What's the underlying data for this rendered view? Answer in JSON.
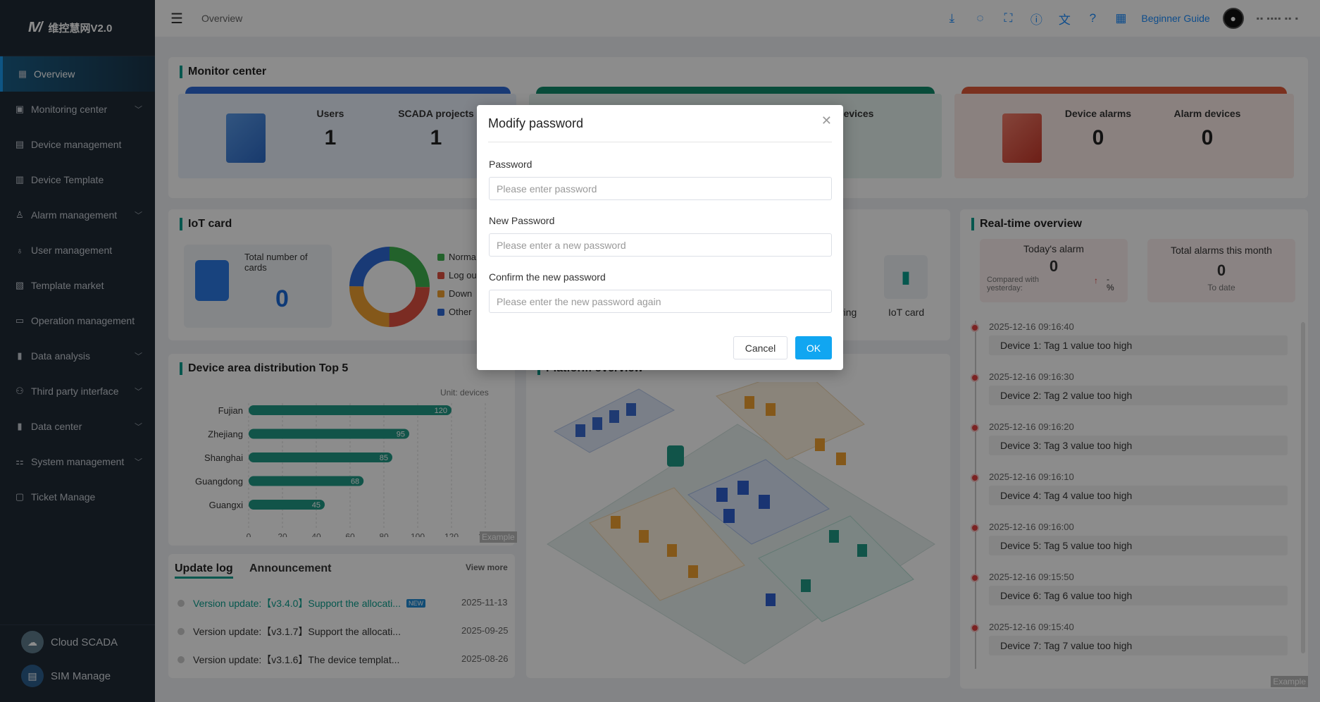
{
  "app": {
    "title": "维控慧网V2.0"
  },
  "sidebar": {
    "items": [
      {
        "label": "Overview",
        "active": true
      },
      {
        "label": "Monitoring center",
        "expandable": true
      },
      {
        "label": "Device management"
      },
      {
        "label": "Device Template"
      },
      {
        "label": "Alarm management",
        "expandable": true
      },
      {
        "label": "User management"
      },
      {
        "label": "Template market"
      },
      {
        "label": "Operation management"
      },
      {
        "label": "Data analysis",
        "expandable": true
      },
      {
        "label": "Third party interface",
        "expandable": true
      },
      {
        "label": "Data center",
        "expandable": true
      },
      {
        "label": "System management",
        "expandable": true
      },
      {
        "label": "Ticket Manage"
      }
    ],
    "bottom": [
      {
        "label": "Cloud SCADA"
      },
      {
        "label": "SIM Manage"
      }
    ]
  },
  "topbar": {
    "breadcrumb": "Overview",
    "guide": "Beginner Guide",
    "user": "▪▪ ▪▪▪▪ ▪▪ ▪"
  },
  "monitor": {
    "title": "Monitor center",
    "users_label": "Users",
    "users_value": "1",
    "scada_label": "SCADA projects",
    "scada_value": "1",
    "devices_label": "evices",
    "devices_value": "",
    "alarms_label": "Device alarms",
    "alarms_value": "0",
    "alarm_devices_label": "Alarm devices",
    "alarm_devices_value": "0"
  },
  "iot": {
    "title": "IoT card",
    "total_label": "Total number of cards",
    "total_value": "0",
    "legend": [
      "Norma",
      "Log ou",
      "Down",
      "Other"
    ],
    "tile1": "ring",
    "tile2": "IoT card"
  },
  "area": {
    "title": "Device area distribution Top 5",
    "unit": "Unit: devices",
    "watermark": "Example"
  },
  "chart_data": {
    "type": "bar",
    "orientation": "horizontal",
    "categories": [
      "Fujian",
      "Zhejiang",
      "Shanghai",
      "Guangdong",
      "Guangxi"
    ],
    "values": [
      120,
      95,
      85,
      68,
      45
    ],
    "xlim": [
      0,
      140
    ],
    "xticks": [
      0,
      20,
      40,
      60,
      80,
      100,
      120,
      140
    ],
    "color": "#1f9a85"
  },
  "platform": {
    "title": "Platform overview"
  },
  "log": {
    "tab1": "Update log",
    "tab2": "Announcement",
    "more": "View more",
    "new_badge": "NEW",
    "rows": [
      {
        "text": "Version update:【v3.4.0】Support the allocati...",
        "date": "2025-11-13"
      },
      {
        "text": "Version update:【v3.1.7】Support the allocati...",
        "date": "2025-09-25"
      },
      {
        "text": "Version update:【v3.1.6】The device templat...",
        "date": "2025-08-26"
      }
    ]
  },
  "realtime": {
    "title": "Real-time overview",
    "today_label": "Today's alarm",
    "today_value": "0",
    "compare_label": "Compared with yesterday:",
    "compare_value": "-",
    "compare_unit": "%",
    "month_label": "Total alarms this month",
    "month_value": "0",
    "month_sub": "To date",
    "watermark": "Example",
    "events": [
      {
        "time": "2025-12-16 09:16:40",
        "msg": "Device 1: Tag 1 value too high"
      },
      {
        "time": "2025-12-16 09:16:30",
        "msg": "Device 2: Tag 2 value too high"
      },
      {
        "time": "2025-12-16 09:16:20",
        "msg": "Device 3: Tag 3 value too high"
      },
      {
        "time": "2025-12-16 09:16:10",
        "msg": "Device 4: Tag 4 value too high"
      },
      {
        "time": "2025-12-16 09:16:00",
        "msg": "Device 5: Tag 5 value too high"
      },
      {
        "time": "2025-12-16 09:15:50",
        "msg": "Device 6: Tag 6 value too high"
      },
      {
        "time": "2025-12-16 09:15:40",
        "msg": "Device 7: Tag 7 value too high"
      }
    ]
  },
  "modal": {
    "title": "Modify password",
    "password_label": "Password",
    "password_placeholder": "Please enter password",
    "new_label": "New Password",
    "new_placeholder": "Please enter a new password",
    "confirm_label": "Confirm the new password",
    "confirm_placeholder": "Please enter the new password again",
    "cancel": "Cancel",
    "ok": "OK"
  }
}
